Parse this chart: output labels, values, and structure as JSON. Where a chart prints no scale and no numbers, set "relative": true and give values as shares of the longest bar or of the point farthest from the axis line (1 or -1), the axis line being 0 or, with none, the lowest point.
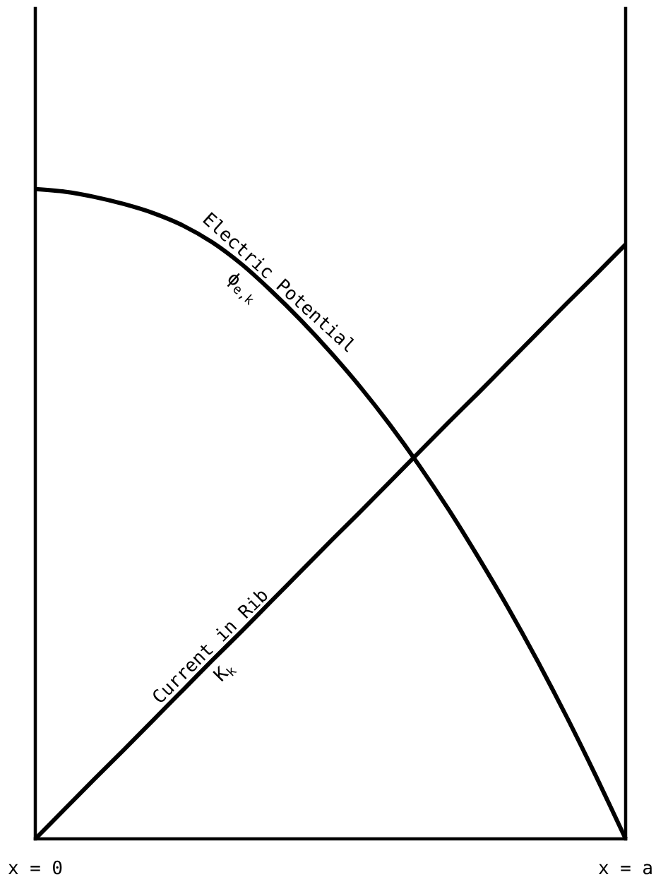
{
  "chart_data": {
    "type": "line",
    "relative": true,
    "line_style": "solid",
    "tick_labels": "x",
    "categories": [
      "x = 0",
      null,
      null,
      null,
      null,
      null,
      null,
      null,
      null,
      null,
      null,
      null,
      null,
      null,
      null,
      null,
      null,
      null,
      null,
      null,
      "x = a"
    ],
    "series": [
      {
        "name": "Electric Potential",
        "color": "#000000",
        "values": [
          1,
          0.996,
          0.988,
          0.977,
          0.963,
          0.944,
          0.918,
          0.884,
          0.843,
          0.798,
          0.749,
          0.696,
          0.638,
          0.575,
          0.507,
          0.434,
          0.357,
          0.275,
          0.188,
          0.096,
          0
        ]
      },
      {
        "name": "Current in Rib",
        "color": "#000000",
        "values": [
          0,
          0.046,
          0.092,
          0.137,
          0.183,
          0.229,
          0.275,
          0.32,
          0.366,
          0.412,
          0.458,
          0.503,
          0.549,
          0.595,
          0.641,
          0.686,
          0.732,
          0.778,
          0.824,
          0.869,
          0.915
        ]
      }
    ],
    "annotations": [
      "ϕ$_{e,k}$",
      "K$_{k}$"
    ]
  }
}
